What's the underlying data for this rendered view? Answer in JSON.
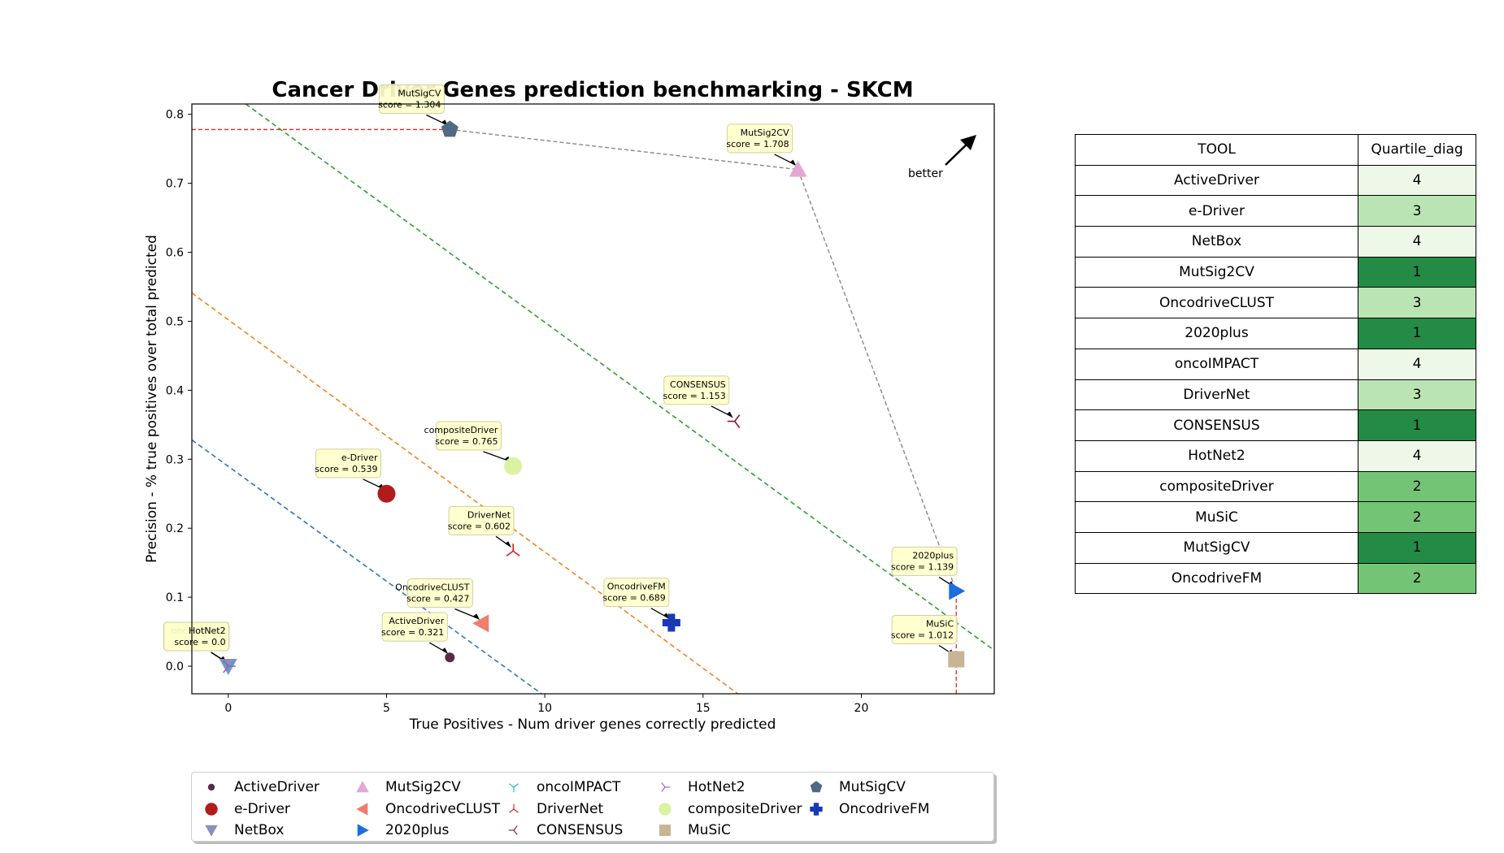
{
  "chart_data": {
    "type": "scatter",
    "title": "Cancer Driver Genes prediction benchmarking - SKCM",
    "xlabel": "True Positives - Num driver genes correctly predicted",
    "ylabel": "Precision - % true positives over total predicted",
    "xlim": [
      -1.15,
      24.2
    ],
    "ylim": [
      -0.04,
      0.815
    ],
    "xticks": [
      0,
      5,
      10,
      15,
      20
    ],
    "yticks": [
      0.0,
      0.1,
      0.2,
      0.3,
      0.4,
      0.5,
      0.6,
      0.7,
      0.8
    ],
    "grid": false,
    "better_label": "better",
    "points": [
      {
        "name": "ActiveDriver",
        "x": 7,
        "y": 0.0127,
        "score_label": "score = 0.321",
        "marker": "circle-small",
        "color": "#5b2a44",
        "label_pos": [
          6.1,
          0.06
        ]
      },
      {
        "name": "e-Driver",
        "x": 5,
        "y": 0.25,
        "score_label": "score = 0.539",
        "marker": "circle",
        "color": "#b01c1c",
        "label_pos": [
          4.0,
          0.297
        ]
      },
      {
        "name": "NetBox",
        "x": 0,
        "y": 0.0,
        "score_label": "score = 0.0",
        "marker": "triangle-down",
        "color": "#8e8eb8",
        "label_pos": [
          -0.8,
          0.046
        ]
      },
      {
        "name": "MutSig2CV",
        "x": 18,
        "y": 0.72,
        "score_label": "score = 1.708",
        "marker": "triangle-up",
        "color": "#e3a7d6",
        "label_pos": [
          17.0,
          0.768
        ]
      },
      {
        "name": "OncodriveCLUST",
        "x": 8,
        "y": 0.062,
        "score_label": "score = 0.427",
        "marker": "triangle-left",
        "color": "#f07e6e",
        "label_pos": [
          6.9,
          0.109
        ]
      },
      {
        "name": "2020plus",
        "x": 23,
        "y": 0.109,
        "score_label": "score = 1.139",
        "marker": "triangle-right",
        "color": "#1b6fe0",
        "label_pos": [
          22.2,
          0.155
        ]
      },
      {
        "name": "oncoIMPACT",
        "x": 0,
        "y": 0.0,
        "score_label": "score = 0.0",
        "marker": "tri-down",
        "color": "#17bcc8",
        "label_pos": [
          -0.8,
          0.046
        ]
      },
      {
        "name": "DriverNet",
        "x": 9,
        "y": 0.167,
        "score_label": "score = 0.602",
        "marker": "tri-up",
        "color": "#d42020",
        "label_pos": [
          8.2,
          0.214
        ]
      },
      {
        "name": "CONSENSUS",
        "x": 16,
        "y": 0.355,
        "score_label": "score = 1.153",
        "marker": "tri-left",
        "color": "#8c1a30",
        "label_pos": [
          15.0,
          0.403
        ]
      },
      {
        "name": "HotNet2",
        "x": 0,
        "y": 0.0,
        "score_label": "score = 0.0",
        "marker": "tri-right",
        "color": "#9a5ec4",
        "label_pos": [
          -0.8,
          0.046
        ]
      },
      {
        "name": "compositeDriver",
        "x": 9,
        "y": 0.29,
        "score_label": "score = 0.765",
        "marker": "circle",
        "color": "#dcf2a0",
        "label_pos": [
          7.8,
          0.337
        ]
      },
      {
        "name": "MuSiC",
        "x": 23,
        "y": 0.01,
        "score_label": "score = 1.012",
        "marker": "square",
        "color": "#c8b593",
        "label_pos": [
          22.2,
          0.056
        ]
      },
      {
        "name": "MutSigCV",
        "x": 7,
        "y": 0.778,
        "score_label": "score = 1.304",
        "marker": "pentagon",
        "color": "#4f6a82",
        "label_pos": [
          6.0,
          0.825
        ]
      },
      {
        "name": "OncodriveFM",
        "x": 14,
        "y": 0.063,
        "score_label": "score = 0.689",
        "marker": "plus",
        "color": "#1838b6",
        "label_pos": [
          13.1,
          0.11
        ]
      }
    ],
    "pareto_front": [
      [
        7,
        0.778
      ],
      [
        18,
        0.72
      ],
      [
        23,
        0.109
      ]
    ],
    "quartile_lines": [
      {
        "color": "#2e78b7",
        "points": [
          [
            -1.15,
            0.328
          ],
          [
            9.9,
            -0.04
          ]
        ]
      },
      {
        "color": "#f5821f",
        "points": [
          [
            -1.15,
            0.541
          ],
          [
            16.1,
            -0.04
          ]
        ]
      },
      {
        "color": "#2ea02e",
        "points": [
          [
            0.55,
            0.815
          ],
          [
            24.2,
            0.023
          ]
        ]
      }
    ],
    "reference_lines": [
      {
        "color": "#e0282a",
        "orientation": "horizontal",
        "value": 0.778,
        "from": -1.15,
        "to": 7
      },
      {
        "color": "#e0282a",
        "orientation": "vertical",
        "value": 23,
        "from": -0.04,
        "to": 0.109
      }
    ],
    "legend_placement": "bottom",
    "legend_order": [
      "ActiveDriver",
      "e-Driver",
      "NetBox",
      "MutSig2CV",
      "OncodriveCLUST",
      "2020plus",
      "oncoIMPACT",
      "DriverNet",
      "CONSENSUS",
      "HotNet2",
      "compositeDriver",
      "MuSiC",
      "MutSigCV",
      "OncodriveFM"
    ]
  },
  "table": {
    "headers": [
      "TOOL",
      "Quartile_diag"
    ],
    "rows": [
      {
        "tool": "ActiveDriver",
        "quartile": "4"
      },
      {
        "tool": "e-Driver",
        "quartile": "3"
      },
      {
        "tool": "NetBox",
        "quartile": "4"
      },
      {
        "tool": "MutSig2CV",
        "quartile": "1"
      },
      {
        "tool": "OncodriveCLUST",
        "quartile": "3"
      },
      {
        "tool": "2020plus",
        "quartile": "1"
      },
      {
        "tool": "oncoIMPACT",
        "quartile": "4"
      },
      {
        "tool": "DriverNet",
        "quartile": "3"
      },
      {
        "tool": "CONSENSUS",
        "quartile": "1"
      },
      {
        "tool": "HotNet2",
        "quartile": "4"
      },
      {
        "tool": "compositeDriver",
        "quartile": "2"
      },
      {
        "tool": "MuSiC",
        "quartile": "2"
      },
      {
        "tool": "MutSigCV",
        "quartile": "1"
      },
      {
        "tool": "OncodriveFM",
        "quartile": "2"
      }
    ],
    "quartile_colors": {
      "1": "#238b45",
      "2": "#74c476",
      "3": "#bae4b3",
      "4": "#edf8e9"
    }
  }
}
